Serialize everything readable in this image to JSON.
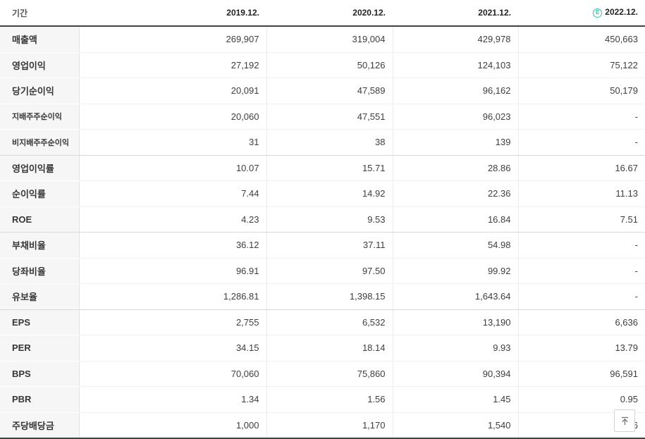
{
  "table": {
    "period_label": "기간",
    "columns": [
      "2019.12.",
      "2020.12.",
      "2021.12.",
      "2022.12."
    ],
    "estimate_badge": "E",
    "estimate_color": "#2ec4a5",
    "rows": [
      {
        "label": "매출액",
        "values": [
          "269,907",
          "319,004",
          "429,978",
          "450,663"
        ],
        "style": "main"
      },
      {
        "label": "영업이익",
        "values": [
          "27,192",
          "50,126",
          "124,103",
          "75,122"
        ],
        "style": "main"
      },
      {
        "label": "당기순이익",
        "values": [
          "20,091",
          "47,589",
          "96,162",
          "50,179"
        ],
        "style": "main"
      },
      {
        "label": "지배주주순이익",
        "values": [
          "20,060",
          "47,551",
          "96,023",
          "-"
        ],
        "style": "sub"
      },
      {
        "label": "비지배주주순이익",
        "values": [
          "31",
          "38",
          "139",
          "-"
        ],
        "style": "sub",
        "group_end": true
      },
      {
        "label": "영업이익률",
        "values": [
          "10.07",
          "15.71",
          "28.86",
          "16.67"
        ],
        "style": "main"
      },
      {
        "label": "순이익률",
        "values": [
          "7.44",
          "14.92",
          "22.36",
          "11.13"
        ],
        "style": "main"
      },
      {
        "label": "ROE",
        "values": [
          "4.23",
          "9.53",
          "16.84",
          "7.51"
        ],
        "style": "main",
        "group_end": true
      },
      {
        "label": "부채비율",
        "values": [
          "36.12",
          "37.11",
          "54.98",
          "-"
        ],
        "style": "main"
      },
      {
        "label": "당좌비율",
        "values": [
          "96.91",
          "97.50",
          "99.92",
          "-"
        ],
        "style": "main"
      },
      {
        "label": "유보율",
        "values": [
          "1,286.81",
          "1,398.15",
          "1,643.64",
          "-"
        ],
        "style": "main",
        "group_end": true
      },
      {
        "label": "EPS",
        "values": [
          "2,755",
          "6,532",
          "13,190",
          "6,636"
        ],
        "style": "main"
      },
      {
        "label": "PER",
        "values": [
          "34.15",
          "18.14",
          "9.93",
          "13.79"
        ],
        "style": "main"
      },
      {
        "label": "BPS",
        "values": [
          "70,060",
          "75,860",
          "90,394",
          "96,591"
        ],
        "style": "main"
      },
      {
        "label": "PBR",
        "values": [
          "1.34",
          "1.56",
          "1.45",
          "0.95"
        ],
        "style": "main"
      },
      {
        "label": "주당배당금",
        "values": [
          "1,000",
          "1,170",
          "1,540",
          "1,546"
        ],
        "style": "main"
      }
    ]
  },
  "scroll_top_button": {
    "icon": "arrow-up-to-top"
  }
}
